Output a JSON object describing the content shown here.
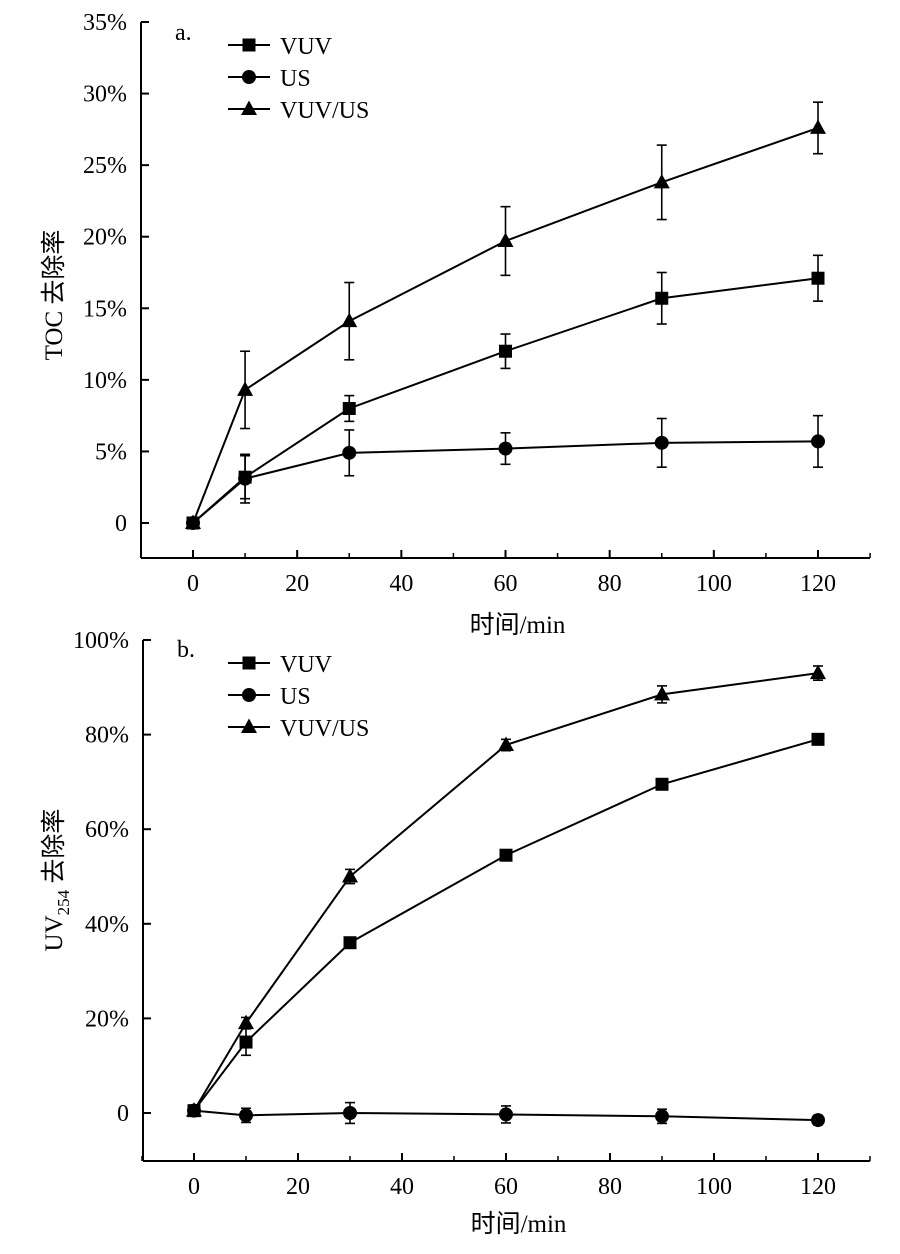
{
  "chart_data": [
    {
      "type": "line",
      "panel_label": "a.",
      "xlabel": "时间/min",
      "ylabel": "TOC 去除率",
      "ylabel_main": "TOC 去除率",
      "ylabel_sub": "",
      "ylabel_tail": "",
      "xlim": [
        -10,
        130
      ],
      "ylim": [
        -2.5,
        35
      ],
      "xticks": [
        0,
        20,
        40,
        60,
        80,
        100,
        120
      ],
      "xtick_labels": [
        "0",
        "20",
        "40",
        "60",
        "80",
        "100",
        "120"
      ],
      "yticks": [
        0,
        5,
        10,
        15,
        20,
        25,
        30,
        35
      ],
      "ytick_labels": [
        "0",
        "5%",
        "10%",
        "15%",
        "20%",
        "25%",
        "30%",
        "35%"
      ],
      "grid": false,
      "legend_position": "top-left",
      "x": [
        0,
        10,
        30,
        60,
        90,
        120
      ],
      "series": [
        {
          "name": "VUV",
          "marker": "square",
          "values": [
            0,
            3.2,
            8.0,
            12.0,
            15.7,
            17.1
          ],
          "errors": [
            0.3,
            1.5,
            0.9,
            1.2,
            1.8,
            1.6
          ]
        },
        {
          "name": "US",
          "marker": "circle",
          "values": [
            0,
            3.1,
            4.9,
            5.2,
            5.6,
            5.7
          ],
          "errors": [
            0.3,
            1.7,
            1.6,
            1.1,
            1.7,
            1.8
          ]
        },
        {
          "name": "VUV/US",
          "marker": "triangle",
          "values": [
            0,
            9.3,
            14.1,
            19.7,
            23.8,
            27.6
          ],
          "errors": [
            0.3,
            2.7,
            2.7,
            2.4,
            2.6,
            1.8
          ]
        }
      ]
    },
    {
      "type": "line",
      "panel_label": "b.",
      "xlabel": "时间/min",
      "ylabel": "UV254 去除率",
      "ylabel_main": "UV",
      "ylabel_sub": "254",
      "ylabel_tail": " 去除率",
      "xlim": [
        -10,
        130
      ],
      "ylim": [
        -10,
        100
      ],
      "xticks": [
        0,
        20,
        40,
        60,
        80,
        100,
        120
      ],
      "xtick_labels": [
        "0",
        "20",
        "40",
        "60",
        "80",
        "100",
        "120"
      ],
      "yticks": [
        0,
        20,
        40,
        60,
        80,
        100
      ],
      "ytick_labels": [
        "0",
        "20%",
        "40%",
        "60%",
        "80%",
        "100%"
      ],
      "grid": false,
      "legend_position": "top-left",
      "x": [
        0,
        10,
        30,
        60,
        90,
        120
      ],
      "series": [
        {
          "name": "VUV",
          "marker": "square",
          "values": [
            0.5,
            15.0,
            36.0,
            54.5,
            69.5,
            79.0
          ],
          "errors": [
            0.5,
            2.8,
            1.0,
            0.8,
            0.8,
            1.0
          ]
        },
        {
          "name": "US",
          "marker": "circle",
          "values": [
            0.5,
            -0.5,
            0,
            -0.3,
            -0.7,
            -1.5
          ],
          "errors": [
            0.5,
            1.5,
            2.2,
            1.8,
            1.5,
            1.0
          ]
        },
        {
          "name": "VUV/US",
          "marker": "triangle",
          "values": [
            0.5,
            19.0,
            50.0,
            77.8,
            88.5,
            93.0
          ],
          "errors": [
            0.5,
            1.2,
            1.5,
            1.2,
            1.8,
            1.5
          ]
        }
      ]
    }
  ]
}
